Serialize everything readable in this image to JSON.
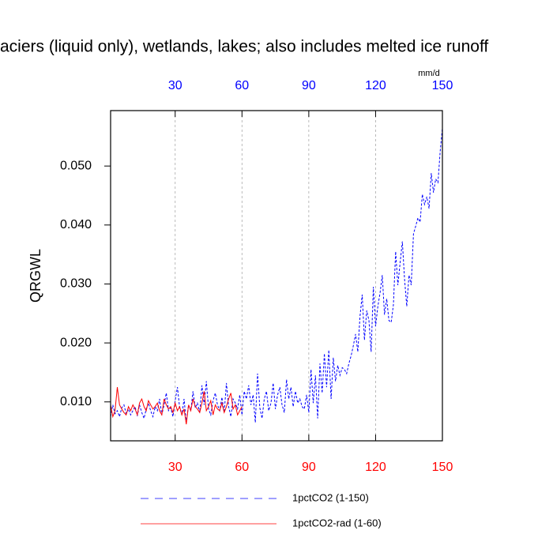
{
  "chart_data": {
    "type": "line",
    "title": "aciers (liquid only), wetlands, lakes; also includes melted ice runoff",
    "ylabel": "QRGWL",
    "top_axis_label": "mm/d",
    "xlim": [
      1,
      150
    ],
    "ylim": [
      0.0034,
      0.0594
    ],
    "xticks": [
      30,
      60,
      90,
      120,
      150
    ],
    "xticks_color": "#ff0000",
    "xticks_top": [
      30,
      60,
      90,
      120,
      150
    ],
    "xticks_top_color": "#0000ff",
    "yticks": [
      {
        "value": 0.01,
        "label": "0.010"
      },
      {
        "value": 0.02,
        "label": "0.020"
      },
      {
        "value": 0.03,
        "label": "0.030"
      },
      {
        "value": 0.04,
        "label": "0.040"
      },
      {
        "value": 0.05,
        "label": "0.050"
      }
    ],
    "grid": true,
    "series": [
      {
        "name": "1pctCO2 (1-150)",
        "color": "#0000ff",
        "dash": true,
        "x": [
          1,
          2,
          3,
          4,
          5,
          6,
          7,
          8,
          9,
          10,
          11,
          12,
          13,
          14,
          15,
          16,
          17,
          18,
          19,
          20,
          21,
          22,
          23,
          24,
          25,
          26,
          27,
          28,
          29,
          30,
          31,
          32,
          33,
          34,
          35,
          36,
          37,
          38,
          39,
          40,
          41,
          42,
          43,
          44,
          45,
          46,
          47,
          48,
          49,
          50,
          51,
          52,
          53,
          54,
          55,
          56,
          57,
          58,
          59,
          60,
          61,
          62,
          63,
          64,
          65,
          66,
          67,
          68,
          69,
          70,
          71,
          72,
          73,
          74,
          75,
          76,
          77,
          78,
          79,
          80,
          81,
          82,
          83,
          84,
          85,
          86,
          87,
          88,
          89,
          90,
          91,
          92,
          93,
          94,
          95,
          96,
          97,
          98,
          99,
          100,
          101,
          102,
          103,
          104,
          105,
          106,
          107,
          108,
          109,
          110,
          111,
          112,
          113,
          114,
          115,
          116,
          117,
          118,
          119,
          120,
          121,
          122,
          123,
          124,
          125,
          126,
          127,
          128,
          129,
          130,
          131,
          132,
          133,
          134,
          135,
          136,
          137,
          138,
          139,
          140,
          141,
          142,
          143,
          144,
          145,
          146,
          147,
          148,
          149,
          150
        ],
        "values": [
          0.0075,
          0.0095,
          0.008,
          0.0085,
          0.0075,
          0.009,
          0.0095,
          0.008,
          0.0088,
          0.0078,
          0.0085,
          0.0092,
          0.0076,
          0.0095,
          0.0082,
          0.0072,
          0.0088,
          0.0098,
          0.0085,
          0.0075,
          0.0092,
          0.0085,
          0.0105,
          0.0078,
          0.0095,
          0.0115,
          0.0085,
          0.009,
          0.0075,
          0.0102,
          0.0125,
          0.009,
          0.0078,
          0.0105,
          0.0065,
          0.0095,
          0.0085,
          0.0118,
          0.009,
          0.0098,
          0.0082,
          0.0128,
          0.0095,
          0.0135,
          0.0088,
          0.0078,
          0.0102,
          0.0115,
          0.0095,
          0.0085,
          0.0108,
          0.0082,
          0.0132,
          0.0092,
          0.0075,
          0.0105,
          0.0098,
          0.0088,
          0.0112,
          0.0078,
          0.0118,
          0.0105,
          0.0128,
          0.0095,
          0.0112,
          0.0065,
          0.0148,
          0.009,
          0.0072,
          0.0105,
          0.0118,
          0.0085,
          0.0098,
          0.0132,
          0.0088,
          0.0112,
          0.0125,
          0.0095,
          0.0082,
          0.0138,
          0.0105,
          0.0125,
          0.0092,
          0.0118,
          0.0098,
          0.0105,
          0.0092,
          0.0088,
          0.0112,
          0.0082,
          0.0155,
          0.0098,
          0.0145,
          0.0072,
          0.0165,
          0.0115,
          0.0182,
          0.0125,
          0.0188,
          0.0105,
          0.0175,
          0.0135,
          0.0162,
          0.0145,
          0.0158,
          0.0155,
          0.0148,
          0.0165,
          0.0178,
          0.0195,
          0.0215,
          0.0185,
          0.0245,
          0.0282,
          0.0205,
          0.0255,
          0.0238,
          0.0185,
          0.0295,
          0.0228,
          0.0262,
          0.0285,
          0.0315,
          0.0248,
          0.0275,
          0.0238,
          0.0235,
          0.0265,
          0.0355,
          0.0298,
          0.0335,
          0.0372,
          0.0308,
          0.0262,
          0.0315,
          0.0298,
          0.0385,
          0.0398,
          0.0412,
          0.0405,
          0.0452,
          0.0435,
          0.0448,
          0.0428,
          0.0488,
          0.0455,
          0.0478,
          0.0472,
          0.0525,
          0.0565
        ]
      },
      {
        "name": "1pctCO2-rad (1-60)",
        "color": "#ff0000",
        "dash": false,
        "x": [
          1,
          2,
          3,
          4,
          5,
          6,
          7,
          8,
          9,
          10,
          11,
          12,
          13,
          14,
          15,
          16,
          17,
          18,
          19,
          20,
          21,
          22,
          23,
          24,
          25,
          26,
          27,
          28,
          29,
          30,
          31,
          32,
          33,
          34,
          35,
          36,
          37,
          38,
          39,
          40,
          41,
          42,
          43,
          44,
          45,
          46,
          47,
          48,
          49,
          50,
          51,
          52,
          53,
          54,
          55,
          56,
          57,
          58,
          59,
          60
        ],
        "values": [
          0.0095,
          0.0075,
          0.0085,
          0.0125,
          0.0095,
          0.0088,
          0.0082,
          0.0078,
          0.0092,
          0.0085,
          0.0095,
          0.0088,
          0.0078,
          0.0098,
          0.0105,
          0.0092,
          0.0085,
          0.0102,
          0.0095,
          0.0088,
          0.0092,
          0.0098,
          0.0085,
          0.0078,
          0.0105,
          0.0095,
          0.0088,
          0.0092,
          0.0082,
          0.0098,
          0.0085,
          0.0092,
          0.0078,
          0.0088,
          0.0062,
          0.0095,
          0.0085,
          0.0105,
          0.0092,
          0.0088,
          0.0082,
          0.0098,
          0.0118,
          0.0085,
          0.0092,
          0.0102,
          0.0078,
          0.0095,
          0.0088,
          0.0085,
          0.0098,
          0.0082,
          0.0092,
          0.0105,
          0.0115,
          0.0088,
          0.0095,
          0.0078,
          0.0085,
          0.0092
        ]
      }
    ]
  }
}
